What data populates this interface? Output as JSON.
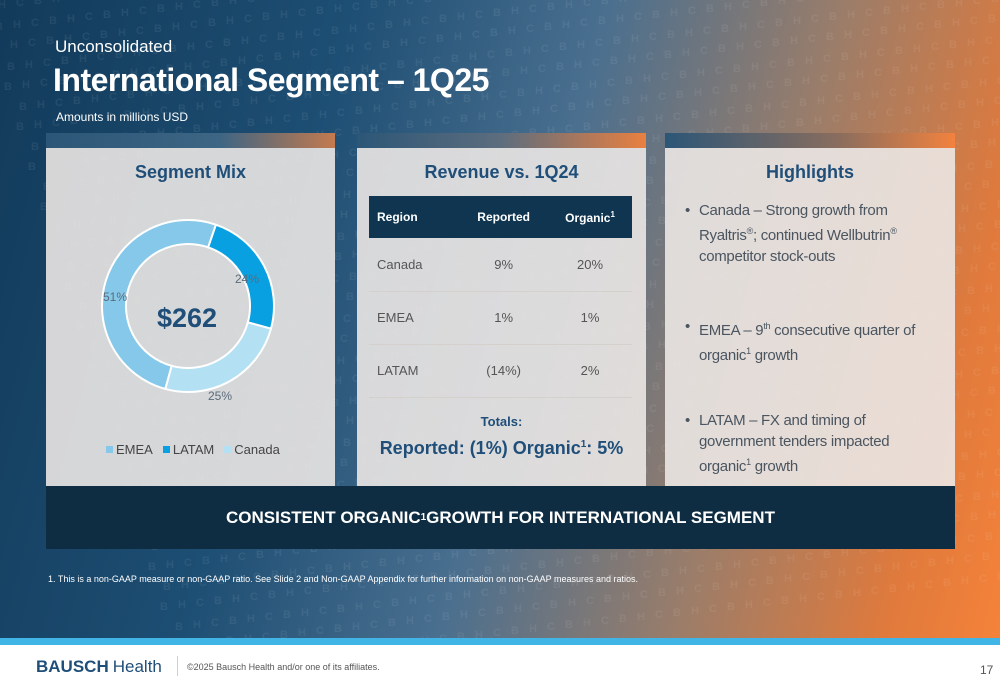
{
  "header": {
    "label": "Unconsolidated",
    "title": "International Segment – 1Q25",
    "units": "Amounts in millions USD"
  },
  "segment_mix": {
    "title": "Segment Mix",
    "total": "$262",
    "slices": [
      {
        "name": "EMEA",
        "pct_label": "51%",
        "color": "#86c8e9"
      },
      {
        "name": "LATAM",
        "pct_label": "24%",
        "color": "#09a0e2"
      },
      {
        "name": "Canada",
        "pct_label": "25%",
        "color": "#b3e0f3"
      }
    ]
  },
  "revenue": {
    "title": "Revenue vs. 1Q24",
    "columns": [
      "Region",
      "Reported",
      "Organic"
    ],
    "organic_sup": "1",
    "rows": [
      {
        "region": "Canada",
        "reported": "9%",
        "organic": "20%"
      },
      {
        "region": "EMEA",
        "reported": "1%",
        "organic": "1%"
      },
      {
        "region": "LATAM",
        "reported": "(14%)",
        "organic": "2%"
      }
    ],
    "totals_label": "Totals:",
    "totals_part1": "Reported: (1%) Organic",
    "totals_sup": "1",
    "totals_part2": ": 5%"
  },
  "highlights": {
    "title": "Highlights",
    "item1": {
      "a": "Canada – Strong growth from Ryaltris",
      "sup1": "®",
      "b": "; continued Wellbutrin",
      "sup2": "®",
      "c": " competitor stock-outs"
    },
    "item2": {
      "a": "EMEA – 9",
      "sup1": "th",
      "b": " consecutive quarter of organic",
      "sup2": "1",
      "c": " growth"
    },
    "item3": {
      "a": "LATAM – FX and timing of government tenders impacted organic",
      "sup1": "1",
      "b": " growth"
    }
  },
  "banner": {
    "part1": "CONSISTENT ORGANIC",
    "sup": "1",
    "part2": " GROWTH FOR INTERNATIONAL SEGMENT"
  },
  "footnote": "1.  This is a non-GAAP measure or non-GAAP ratio. See Slide 2 and Non-GAAP Appendix for further information on non-GAAP measures and ratios.",
  "footer": {
    "logo_bold": "BAUSCH",
    "logo_light": "Health",
    "copyright": "©2025 Bausch Health and/or one of its affiliates.",
    "page": "17"
  },
  "chart_data": {
    "type": "pie",
    "title": "Segment Mix",
    "center_label": "$262",
    "categories": [
      "EMEA",
      "LATAM",
      "Canada"
    ],
    "values": [
      51,
      24,
      25
    ],
    "legend": "bottom",
    "colors": [
      "#86c8e9",
      "#09a0e2",
      "#b3e0f3"
    ]
  }
}
